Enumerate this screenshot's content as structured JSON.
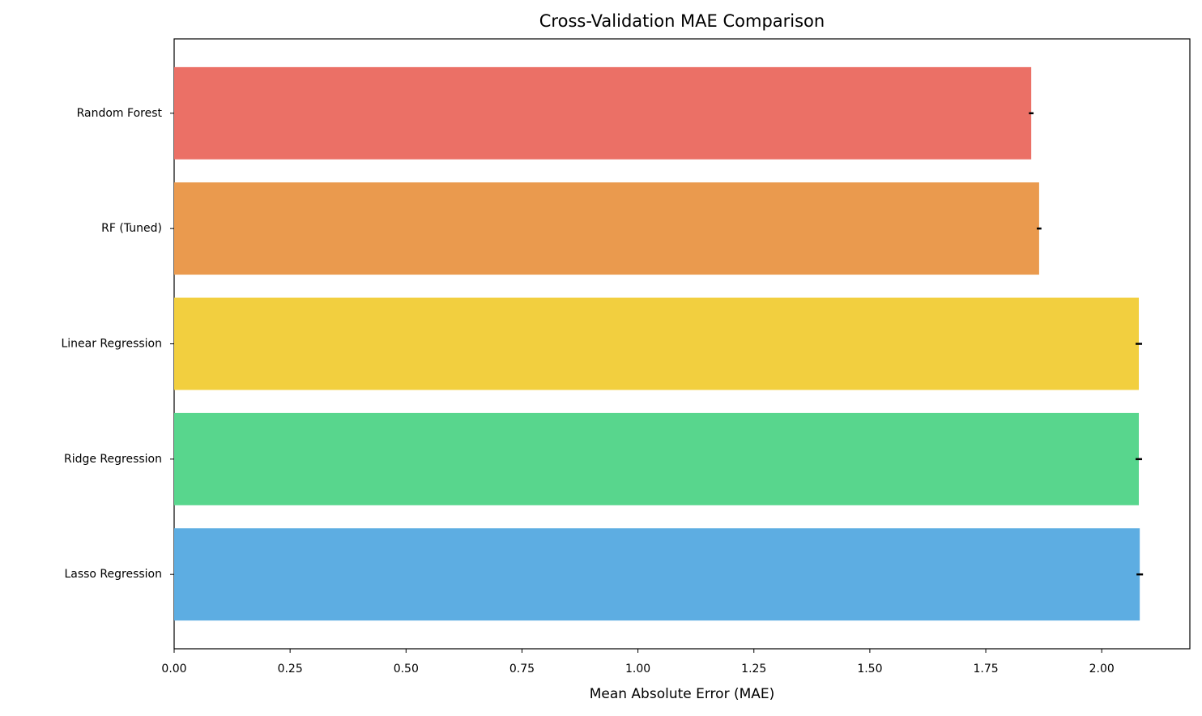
{
  "chart_data": {
    "type": "barh",
    "title": "Cross-Validation MAE Comparison",
    "x_label": "Mean Absolute Error (MAE)",
    "categories": [
      "Random Forest",
      "RF (Tuned)",
      "Linear Regression",
      "Ridge Regression",
      "Lasso Regression"
    ],
    "values": [
      1.848,
      1.865,
      2.08,
      2.08,
      2.082
    ],
    "errors": [
      0.005,
      0.005,
      0.007,
      0.007,
      0.007
    ],
    "colors": [
      "#eb7066",
      "#ea9a4e",
      "#f2cf3f",
      "#58d68d",
      "#5dade2"
    ],
    "xlim": [
      0,
      2.19
    ],
    "xticks": [
      {
        "value": 0,
        "label": "0.00"
      },
      {
        "value": 0.25,
        "label": "0.25"
      },
      {
        "value": 0.5,
        "label": "0.50"
      },
      {
        "value": 0.75,
        "label": "0.75"
      },
      {
        "value": 1,
        "label": "1.00"
      },
      {
        "value": 1.25,
        "label": "1.25"
      },
      {
        "value": 1.5,
        "label": "1.50"
      },
      {
        "value": 1.75,
        "label": "1.75"
      },
      {
        "value": 2,
        "label": "2.00"
      }
    ],
    "grid": false
  }
}
